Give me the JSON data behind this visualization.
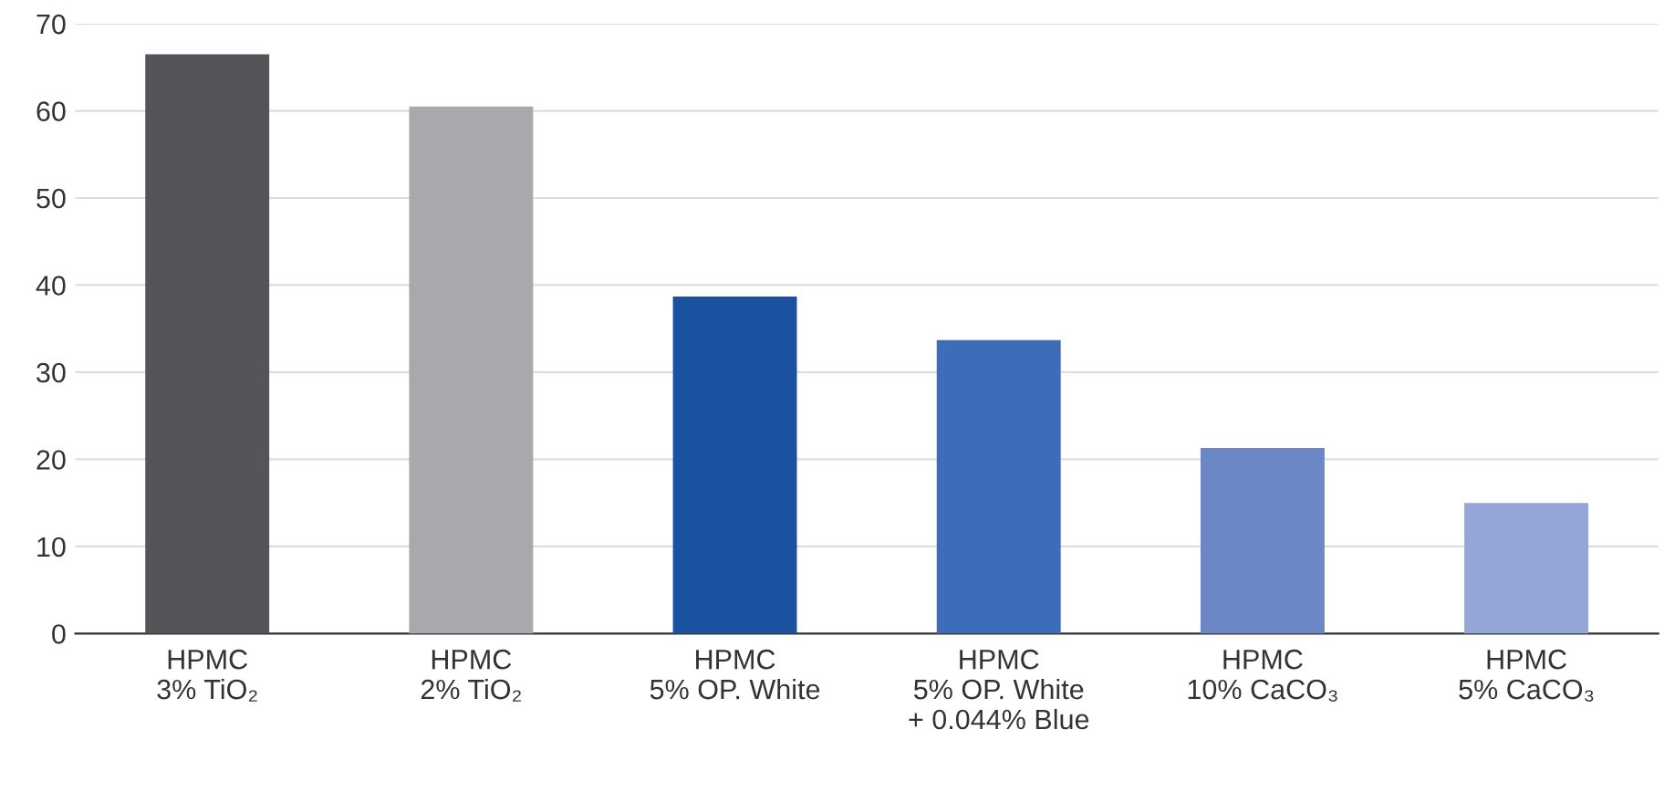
{
  "chart_data": {
    "type": "bar",
    "categories": [
      "HPMC\n3% TiO₂",
      "HPMC\n2% TiO₂",
      "HPMC\n5% OP. White",
      "HPMC\n5% OP. White\n+ 0.044% Blue",
      "HPMC\n10% CaCO₃",
      "HPMC\n5% CaCO₃"
    ],
    "values": [
      66.5,
      60.5,
      38.7,
      33.7,
      21.3,
      15.0
    ],
    "colors": [
      "#545558",
      "#a7a9ac",
      "#1a52a0",
      "#3d6db8",
      "#6b87c6",
      "#94a6d8"
    ],
    "ylim": [
      0,
      70
    ],
    "yticks": [
      0,
      10,
      20,
      30,
      40,
      50,
      60,
      70
    ],
    "grid": "y"
  }
}
